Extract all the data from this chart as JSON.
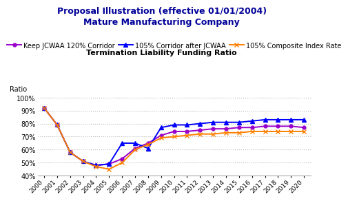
{
  "title_line1": "Proposal Illustration (effective 01/01/2004)",
  "title_line2": "Mature Manufacturing Company",
  "subtitle": "Termination Liability Funding Ratio",
  "ylabel": "Ratio",
  "years": [
    2000,
    2001,
    2002,
    2003,
    2004,
    2005,
    2006,
    2007,
    2008,
    2009,
    2010,
    2011,
    2012,
    2013,
    2014,
    2015,
    2016,
    2017,
    2018,
    2019,
    2020
  ],
  "series": [
    {
      "label": "Keep JCWAA 120% Corridor",
      "color": "#9900CC",
      "marker": "o",
      "markersize": 3.5,
      "linewidth": 1.4,
      "values": [
        92,
        79,
        58,
        51,
        48,
        49,
        53,
        61,
        65,
        71,
        74,
        74,
        75,
        76,
        76,
        77,
        77,
        78,
        78,
        78,
        77
      ]
    },
    {
      "label": "105% Corridor after JCWAA",
      "color": "#0000FF",
      "marker": "^",
      "markersize": 4,
      "linewidth": 1.4,
      "values": [
        92,
        79,
        58,
        51,
        48,
        49,
        65,
        65,
        61,
        77,
        79,
        79,
        80,
        81,
        81,
        81,
        82,
        83,
        83,
        83,
        83
      ]
    },
    {
      "label": "105% Composite Index Rate",
      "color": "#FF8000",
      "marker": "x",
      "markersize": 5,
      "linewidth": 1.4,
      "values": [
        92,
        79,
        58,
        51,
        47,
        45,
        50,
        60,
        64,
        69,
        70,
        71,
        72,
        72,
        73,
        73,
        74,
        74,
        74,
        74,
        74
      ]
    }
  ],
  "ylim": [
    40,
    105
  ],
  "yticks": [
    40,
    50,
    60,
    70,
    80,
    90,
    100
  ],
  "background_color": "#FFFFFF",
  "grid_color": "#BBBBBB",
  "title_color": "#000099",
  "legend_fontsize": 7,
  "axis_fontsize": 7,
  "subtitle_fontsize": 8,
  "title_fontsize": 9
}
